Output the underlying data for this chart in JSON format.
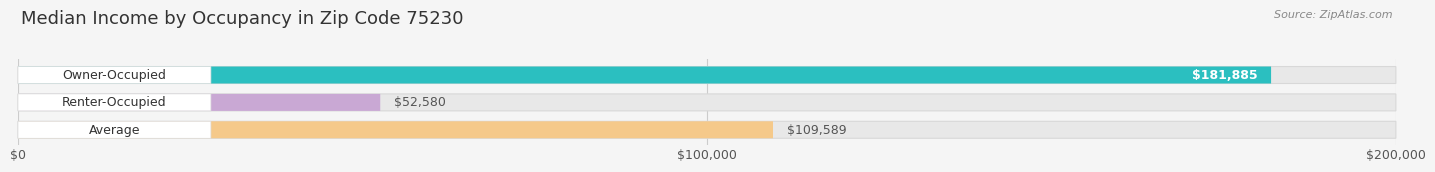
{
  "title": "Median Income by Occupancy in Zip Code 75230",
  "source": "Source: ZipAtlas.com",
  "categories": [
    "Owner-Occupied",
    "Renter-Occupied",
    "Average"
  ],
  "values": [
    181885,
    52580,
    109589
  ],
  "bar_colors": [
    "#2bbfc0",
    "#c9a8d4",
    "#f5c98a"
  ],
  "value_labels": [
    "$181,885",
    "$52,580",
    "$109,589"
  ],
  "value_label_inside": [
    true,
    false,
    false
  ],
  "xlim": [
    0,
    200000
  ],
  "xtick_values": [
    0,
    100000,
    200000
  ],
  "xtick_labels": [
    "$0",
    "$100,000",
    "$200,000"
  ],
  "title_fontsize": 13,
  "label_fontsize": 9,
  "value_fontsize": 9,
  "source_fontsize": 8,
  "bar_height": 0.62,
  "background_color": "#f5f5f5",
  "bar_bg_color": "#e8e8e8",
  "bar_bg_edge_color": "#d8d8d8",
  "label_bg_color": "#ffffff",
  "label_bg_edge_color": "#dddddd"
}
